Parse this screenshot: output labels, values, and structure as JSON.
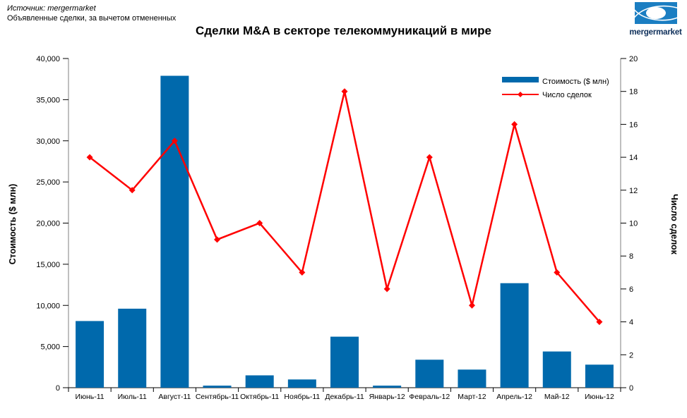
{
  "header": {
    "source_line1": "Источник: mergermarket",
    "source_line2": "Объявленные сделки, за вычетом отмененных",
    "title": "Сделки M&A в секторе телекоммуникаций в мире",
    "logo_text": "mergermarket"
  },
  "colors": {
    "bar": "#0069ac",
    "line": "#ff0000",
    "axis_line": "#7f7f7f",
    "logo_blue": "#1b7ec2",
    "logo_text": "#0e2f5a"
  },
  "chart_data": {
    "type": "bar",
    "title": "Сделки M&A в секторе телекоммуникаций в мире",
    "categories": [
      "Июнь-11",
      "Июль-11",
      "Август-11",
      "Сентябрь-11",
      "Октябрь-11",
      "Ноябрь-11",
      "Декабрь-11",
      "Январь-12",
      "Февраль-12",
      "Март-12",
      "Апрель-12",
      "Май-12",
      "Июнь-12"
    ],
    "series": [
      {
        "name": "Стоимость ($ млн)",
        "kind": "bar",
        "axis": "left",
        "color": "#0069ac",
        "values": [
          8100,
          9600,
          37900,
          250,
          1500,
          1000,
          6200,
          250,
          3400,
          2200,
          12700,
          4400,
          2800
        ]
      },
      {
        "name": "Число сделок",
        "kind": "line",
        "axis": "right",
        "color": "#ff0000",
        "marker": "diamond",
        "values": [
          14,
          12,
          15,
          9,
          10,
          7,
          18,
          6,
          14,
          5,
          16,
          7,
          4
        ]
      }
    ],
    "left_axis": {
      "label": "Стоимость ($ млн)",
      "min": 0,
      "max": 40000,
      "tick_step": 5000,
      "tick_labels": [
        "0",
        "5,000",
        "10,000",
        "15,000",
        "20,000",
        "25,000",
        "30,000",
        "35,000",
        "40,000"
      ]
    },
    "right_axis": {
      "label": "Число сделок",
      "min": 0,
      "max": 20,
      "tick_step": 2,
      "tick_labels": [
        "0",
        "2",
        "4",
        "6",
        "8",
        "10",
        "12",
        "14",
        "16",
        "18",
        "20"
      ]
    },
    "legend": {
      "position": "top-right",
      "items": [
        "Стоимость ($ млн)",
        "Число сделок"
      ]
    },
    "grid": false
  }
}
